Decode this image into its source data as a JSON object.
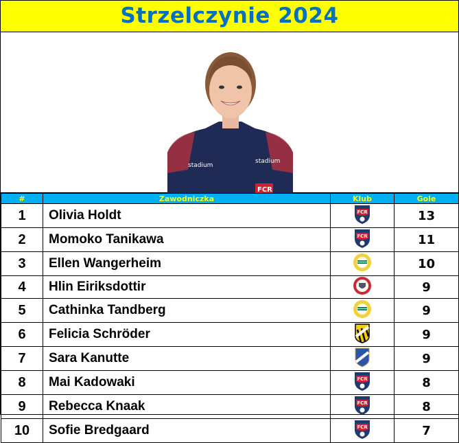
{
  "title": "Strzelczynie 2024",
  "photo": {
    "icon": "player-photo",
    "shirt_texts": [
      "stadium",
      "stadium",
      "FCR"
    ]
  },
  "table": {
    "headers": [
      "#",
      "Zawodniczka",
      "Klub",
      "Gole"
    ],
    "rows": [
      {
        "rank": "1",
        "name": "Olivia Holdt",
        "club": "fcr",
        "goals": "13"
      },
      {
        "rank": "2",
        "name": "Momoko Tanikawa",
        "club": "fcr",
        "goals": "11"
      },
      {
        "rank": "3",
        "name": "Ellen Wangerheim",
        "club": "hammarby",
        "goals": "10"
      },
      {
        "rank": "4",
        "name": "Hlin Eiriksdottir",
        "club": "kristianstad",
        "goals": "9"
      },
      {
        "rank": "5",
        "name": "Cathinka Tandberg",
        "club": "hammarby",
        "goals": "9"
      },
      {
        "rank": "6",
        "name": "Felicia Schröder",
        "club": "hacken",
        "goals": "9"
      },
      {
        "rank": "7",
        "name": "Sara Kanutte",
        "club": "norrkoping",
        "goals": "9"
      },
      {
        "rank": "8",
        "name": "Mai Kadowaki",
        "club": "fcr",
        "goals": "8"
      },
      {
        "rank": "9",
        "name": "Rebecca Knaak",
        "club": "fcr",
        "goals": "8"
      },
      {
        "rank": "10",
        "name": "Sofie Bredgaard",
        "club": "fcr",
        "goals": "7"
      }
    ]
  },
  "colors": {
    "title_bg": "#ffff00",
    "title_text": "#0070c0",
    "header_bg": "#00b0f0",
    "header_text": "#ffff00"
  }
}
